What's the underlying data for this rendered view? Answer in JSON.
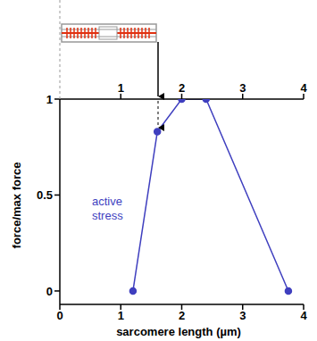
{
  "chart_data": {
    "type": "line",
    "x": [
      1.2,
      1.6,
      2.0,
      2.4,
      3.75
    ],
    "series": [
      {
        "values": [
          0,
          0.83,
          1,
          1,
          0
        ],
        "color": "#3f3fbf",
        "marker": "circle",
        "line_style": "solid"
      }
    ],
    "xlabel": "sarcomere length (µm)",
    "ylabel": "force/max force",
    "annotation": "active stress",
    "xlim": [
      0,
      4
    ],
    "xticks": [
      0,
      1,
      2,
      3,
      4
    ],
    "x2lim": [
      0,
      4
    ],
    "x2ticks": [
      1,
      2,
      3,
      4
    ],
    "ylim": [
      -0.07,
      1
    ],
    "yticks": [
      0,
      0.5,
      1
    ]
  }
}
